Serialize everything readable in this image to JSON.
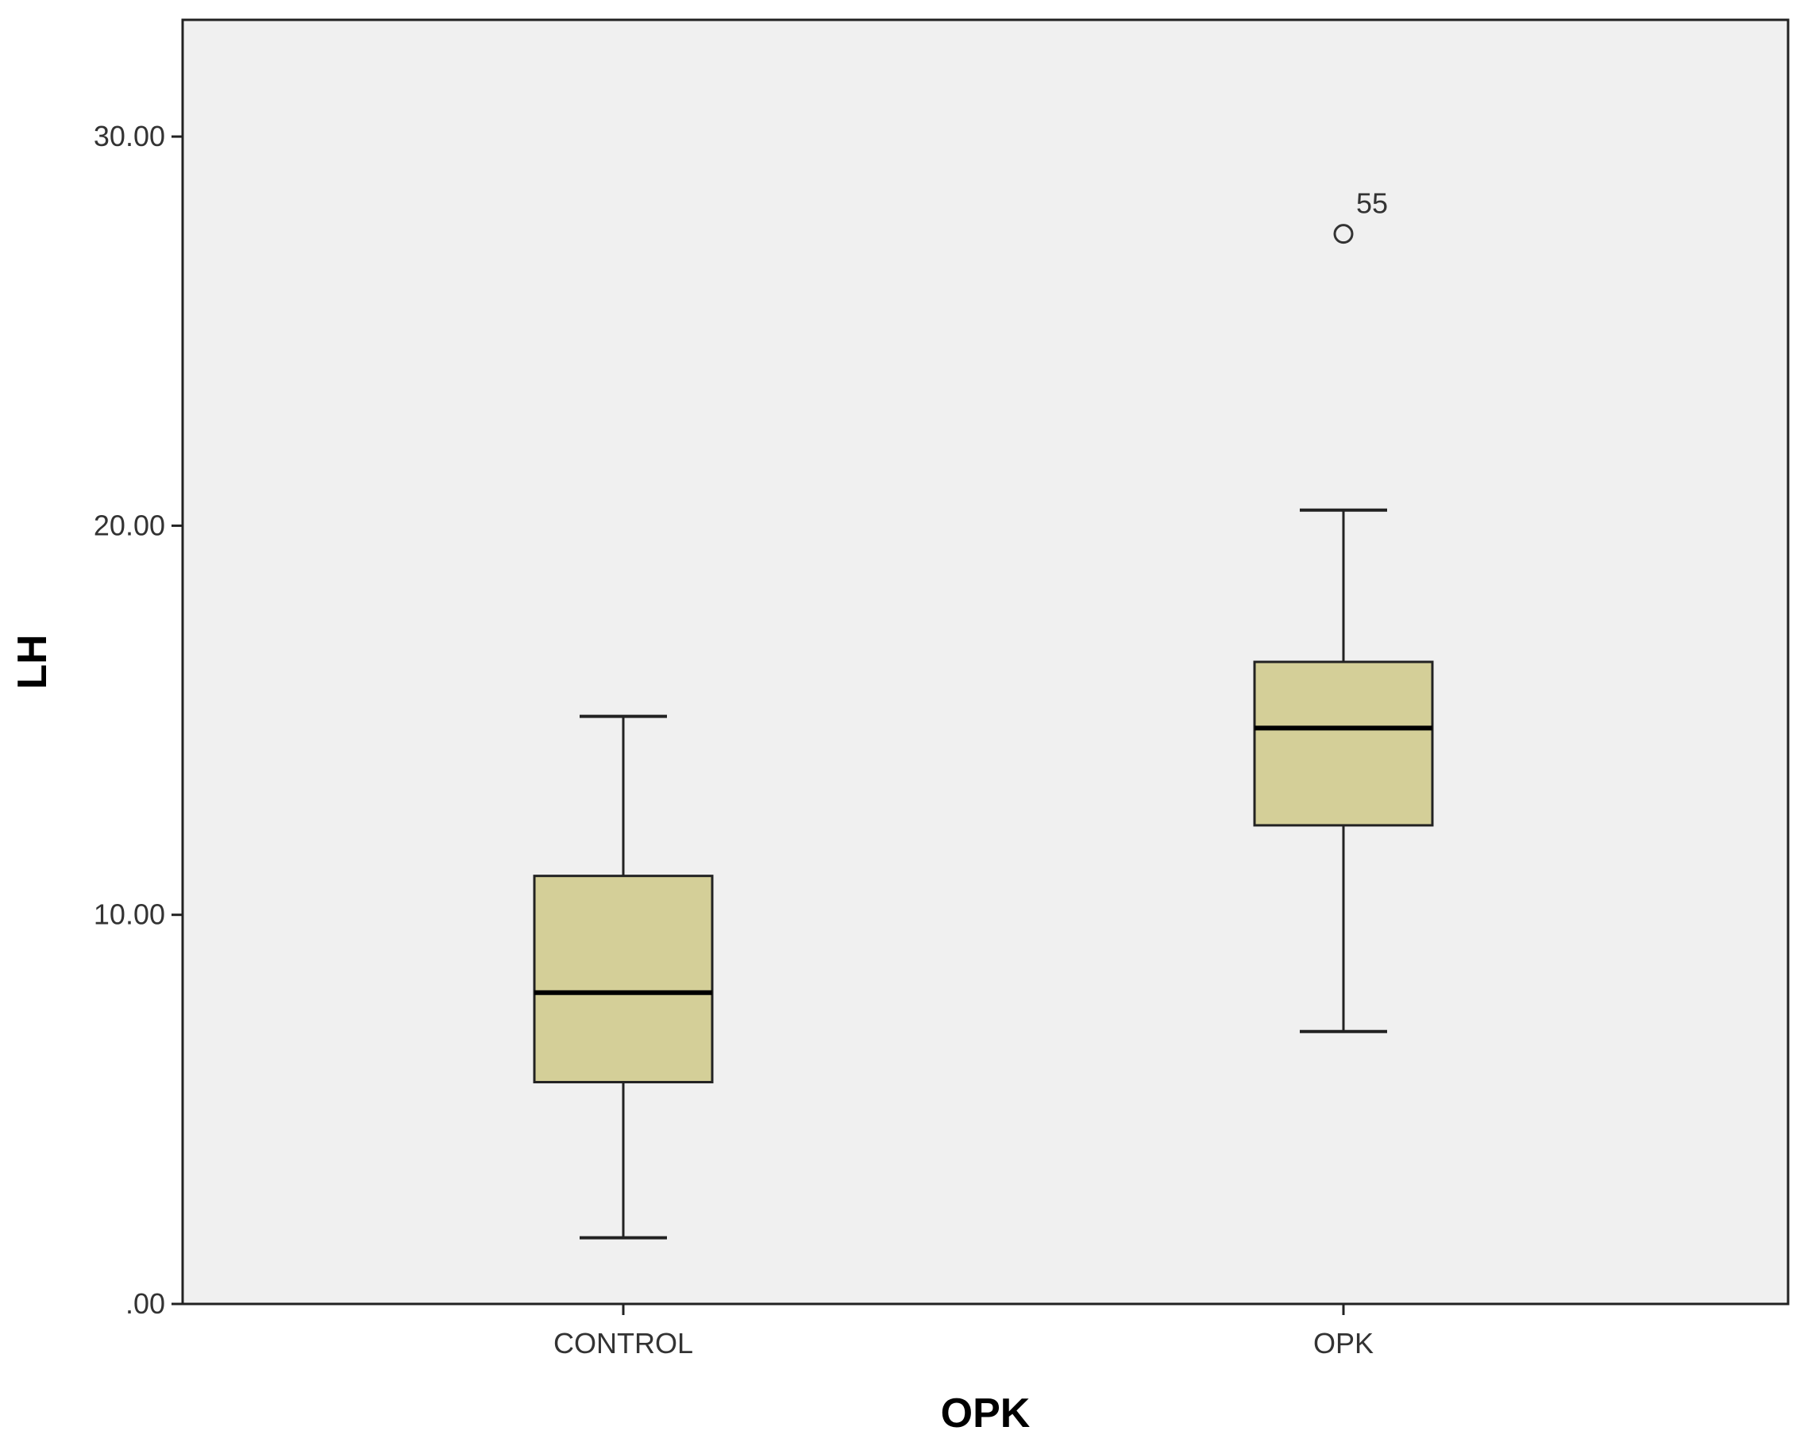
{
  "chart_data": {
    "type": "boxplot",
    "title": "",
    "xlabel": "OPK",
    "ylabel": "LH",
    "ylim": [
      0,
      33
    ],
    "yticks": [
      0,
      10,
      20,
      30
    ],
    "ytick_labels": [
      ".00",
      "10.00",
      "20.00",
      "30.00"
    ],
    "categories": [
      "CONTROL",
      "OPK"
    ],
    "boxes": [
      {
        "category": "CONTROL",
        "whisker_low": 1.7,
        "q1": 5.7,
        "median": 8.0,
        "q3": 11.0,
        "whisker_high": 15.1,
        "outliers": []
      },
      {
        "category": "OPK",
        "whisker_low": 7.0,
        "q1": 12.3,
        "median": 14.8,
        "q3": 16.5,
        "whisker_high": 20.4,
        "outliers": [
          {
            "value": 27.5,
            "label": "55"
          }
        ]
      }
    ],
    "grid": false,
    "legend": "none",
    "colors": {
      "plot_background": "#f0f0f0",
      "box_fill": "#d4cf98",
      "stroke": "#222222"
    }
  }
}
